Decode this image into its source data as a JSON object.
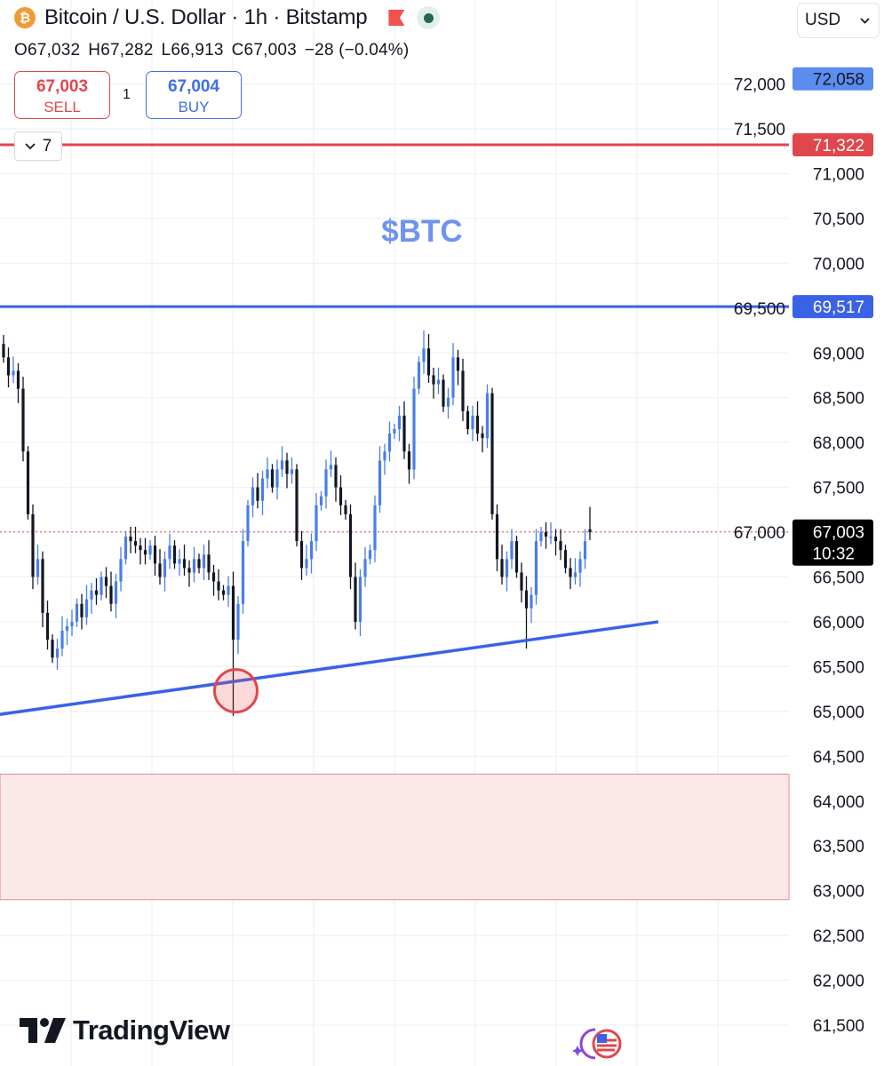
{
  "header": {
    "title": "Bitcoin / U.S. Dollar · 1h · Bitstamp",
    "symbol_icon": "bitcoin-icon",
    "flag_icon": "flag-icon",
    "status_icon": "market-open-dot-icon",
    "ohlc": {
      "open": "O67,032",
      "high": "H67,282",
      "low": "L66,913",
      "close": "C67,003",
      "change": "−28 (−0.04%)"
    }
  },
  "trade": {
    "sell_price": "67,003",
    "sell_label": "SELL",
    "quantity": "1",
    "buy_price": "67,004",
    "buy_label": "BUY"
  },
  "indicators_toggle": {
    "count": "7",
    "icon": "chevron-down-icon"
  },
  "currency": {
    "value": "USD",
    "icon": "chevron-down-icon"
  },
  "logo": {
    "text": "TradingView"
  },
  "colors": {
    "up": "#4a7ee8",
    "down": "#131722",
    "resistance": "#e0474c",
    "support": "#3a62e6",
    "zone_fill": "#fbe9ea",
    "zone_border": "#e78a8e",
    "annotation": "#6f93f0",
    "grid": "#f0f1f3"
  },
  "chart_data": {
    "type": "candlestick",
    "title": "$BTC",
    "interval": "1h",
    "ylim": [
      61300,
      72300
    ],
    "grid": true,
    "y_ticks": [
      "72,000",
      "71,500",
      "71,000",
      "70,500",
      "70,000",
      "69,500",
      "69,000",
      "68,500",
      "68,000",
      "67,500",
      "67,000",
      "66,500",
      "66,000",
      "65,500",
      "65,000",
      "64,500",
      "64,000",
      "63,500",
      "63,000",
      "62,500",
      "62,000",
      "61,500"
    ],
    "closes": [
      68950,
      68750,
      68800,
      68600,
      67900,
      67200,
      66500,
      66700,
      66100,
      65800,
      65600,
      65700,
      65900,
      65950,
      66000,
      66200,
      66050,
      66250,
      66350,
      66300,
      66500,
      66400,
      66200,
      66450,
      66700,
      66950,
      66900,
      66850,
      66800,
      66750,
      66850,
      66650,
      66500,
      66700,
      66850,
      66650,
      66700,
      66600,
      66550,
      66700,
      66600,
      66750,
      66550,
      66450,
      66350,
      66300,
      66400,
      65800,
      66200,
      66900,
      67300,
      67500,
      67350,
      67600,
      67700,
      67500,
      67700,
      67800,
      67650,
      67700,
      66900,
      66600,
      66700,
      66900,
      67300,
      67400,
      67700,
      67750,
      67500,
      67300,
      67200,
      66500,
      66000,
      66500,
      66700,
      66800,
      67300,
      67800,
      67900,
      68100,
      68150,
      68300,
      67900,
      67700,
      68600,
      68900,
      69050,
      68750,
      68650,
      68700,
      68400,
      68500,
      68950,
      68800,
      68350,
      68150,
      68300,
      68100,
      68050,
      68550,
      67200,
      66700,
      66500,
      66700,
      66900,
      66550,
      66350,
      66150,
      66300,
      66900,
      67000,
      66950,
      66950,
      66900,
      66800,
      66600,
      66500,
      66550,
      66700,
      66900,
      67003
    ],
    "first_open": 69100,
    "notable_wicks": [
      {
        "index": 0,
        "high": 69200
      },
      {
        "index": 47,
        "low": 64950
      },
      {
        "index": 86,
        "high": 69250
      },
      {
        "index": 99,
        "high": 68650
      },
      {
        "index": 107,
        "low": 65700
      }
    ],
    "last_candle": {
      "open": 67032,
      "high": 67282,
      "low": 66913,
      "close": 67003
    },
    "horizontal_lines": [
      {
        "price": 71322,
        "label": "71,322",
        "color": "#e0474c"
      },
      {
        "price": 69517,
        "label": "69,517",
        "color": "#3a62e6"
      }
    ],
    "price_marker": {
      "price": 72058,
      "label": "72,058"
    },
    "current_price": {
      "price": 67003,
      "label": "67,003",
      "countdown": "10:32"
    },
    "trend_line": {
      "from": {
        "index": -16,
        "price": 64850
      },
      "to": {
        "index": 134,
        "price": 66000
      }
    },
    "circle_marker": {
      "index": 47,
      "price": 65230
    },
    "zone": {
      "top": 64300,
      "bottom": 62900
    }
  }
}
